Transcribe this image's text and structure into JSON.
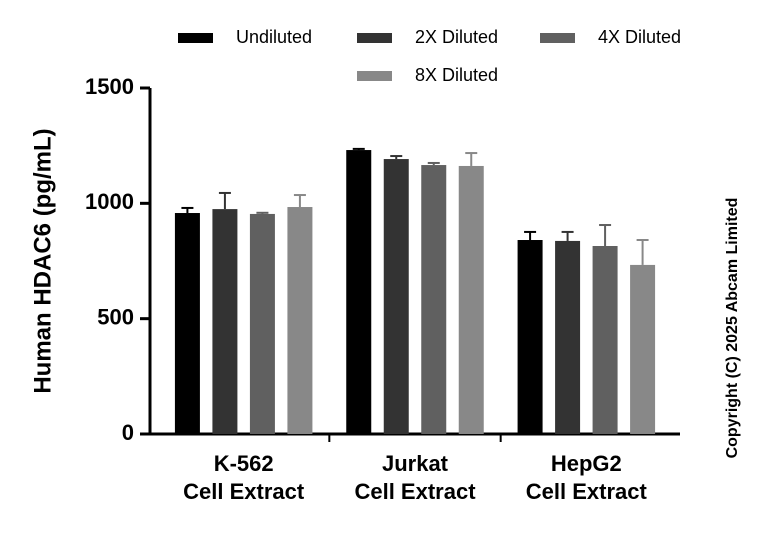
{
  "chart_data": {
    "type": "bar",
    "ylabel": "Human HDAC6 (pg/mL)",
    "annotation": "Copyright (C) 2025 Abcam Limited",
    "categories": [
      "K-562\nCell Extract",
      "Jurkat\nCell Extract",
      "HepG2\nCell Extract"
    ],
    "series": [
      {
        "name": "Undiluted",
        "color": "#000000",
        "values": [
          958,
          1231,
          841
        ],
        "errors": [
          22,
          5,
          35
        ]
      },
      {
        "name": "2X Diluted",
        "color": "#333333",
        "values": [
          975,
          1192,
          837
        ],
        "errors": [
          70,
          13,
          39
        ]
      },
      {
        "name": "4X Diluted",
        "color": "#606060",
        "values": [
          954,
          1166,
          815
        ],
        "errors": [
          5,
          9,
          91
        ]
      },
      {
        "name": "8X Diluted",
        "color": "#888888",
        "values": [
          984,
          1162,
          733
        ],
        "errors": [
          52,
          56,
          108
        ]
      }
    ],
    "ylim": [
      0,
      1500
    ],
    "yticks": [
      0,
      500,
      1000,
      1500
    ]
  }
}
